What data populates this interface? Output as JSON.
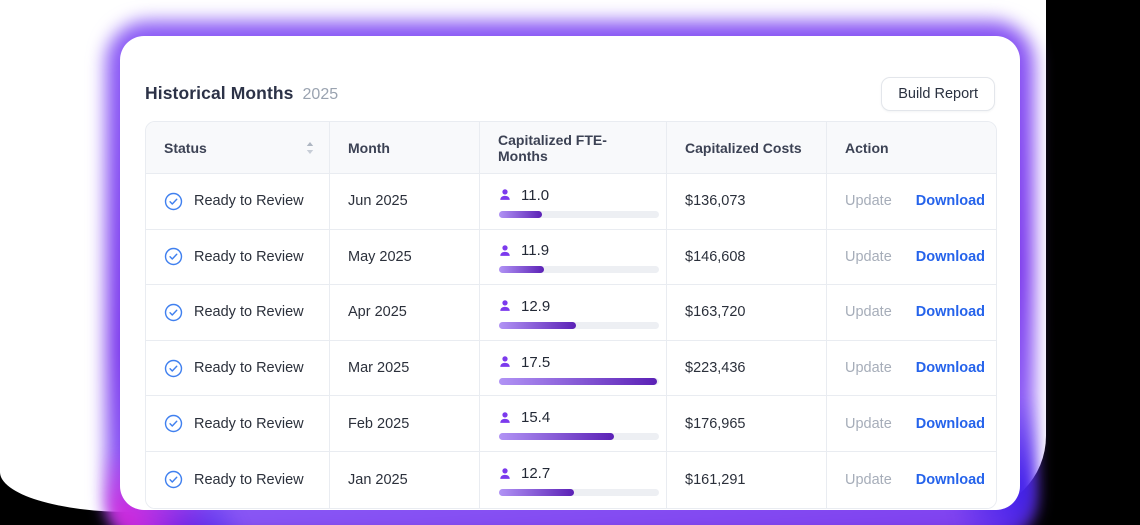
{
  "page": {
    "title": "Historical Months",
    "subtitle": "2025",
    "build_report_label": "Build Report"
  },
  "table": {
    "columns": [
      "Status",
      "Month",
      "Capitalized FTE-Months",
      "Capitalized Costs",
      "Action"
    ],
    "actions": {
      "update": "Update",
      "download": "Download"
    },
    "rows": [
      {
        "status": "Ready to Review",
        "month": "Jun 2025",
        "fte": "11.0",
        "bar_percent": 27,
        "cost": "$136,073"
      },
      {
        "status": "Ready to Review",
        "month": "May 2025",
        "fte": "11.9",
        "bar_percent": 28,
        "cost": "$146,608"
      },
      {
        "status": "Ready to Review",
        "month": "Apr 2025",
        "fte": "12.9",
        "bar_percent": 48,
        "cost": "$163,720"
      },
      {
        "status": "Ready to Review",
        "month": "Mar 2025",
        "fte": "17.5",
        "bar_percent": 99,
        "cost": "$223,436"
      },
      {
        "status": "Ready to Review",
        "month": "Feb 2025",
        "fte": "15.4",
        "bar_percent": 72,
        "cost": "$176,965"
      },
      {
        "status": "Ready to Review",
        "month": "Jan 2025",
        "fte": "12.7",
        "bar_percent": 47,
        "cost": "$161,291"
      }
    ]
  },
  "colors": {
    "accent": "#7c3aed",
    "bar-start": "#b193f5",
    "bar-end": "#5b21b6",
    "track": "#edeff3",
    "status-blue": "#4080ef",
    "download-blue": "#2563eb",
    "update-gray": "#a6adb9",
    "title": "#2c3247",
    "subtitle": "#9aa3b0",
    "head-bg": "#f8f9fb",
    "head-text": "#3c4254",
    "cell-text": "#2b303b",
    "line": "#e9ecf1",
    "glow-a": "#8b5cf6",
    "glow-b": "#7c3aed",
    "glow-pink": "#e020d8",
    "glow-blue": "#3318e8"
  }
}
